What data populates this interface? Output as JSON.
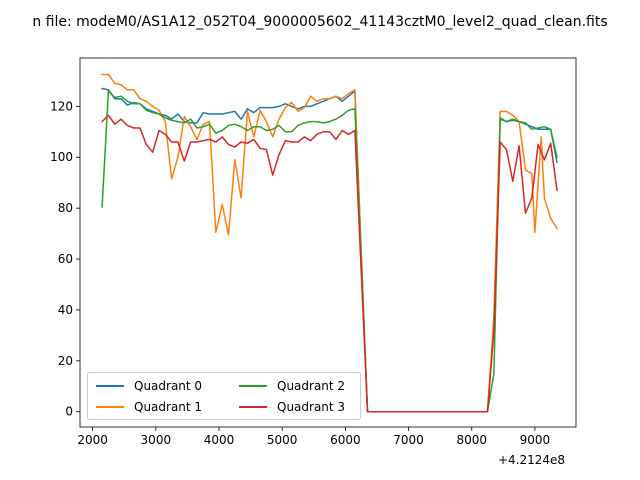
{
  "chart_data": {
    "type": "line",
    "title": "n file: modeM0/AS1A12_052T04_9000005602_41143cztM0_level2_quad_clean.fits",
    "xlabel": "",
    "ylabel": "",
    "x_offset_label": "+4.2124e8",
    "xlim": [
      1800,
      9650
    ],
    "ylim": [
      -6,
      139
    ],
    "xticks": [
      2000,
      3000,
      4000,
      5000,
      6000,
      7000,
      8000,
      9000
    ],
    "yticks": [
      0,
      20,
      40,
      60,
      80,
      100,
      120
    ],
    "legend_placement": "lower-left",
    "legend_columns": 2,
    "grid": false,
    "series": [
      {
        "name": "Quadrant 0",
        "color": "#1f77b4",
        "points": [
          [
            2150,
            127
          ],
          [
            2250,
            126.5
          ],
          [
            2350,
            123
          ],
          [
            2450,
            123
          ],
          [
            2550,
            120.5
          ],
          [
            2650,
            121.5
          ],
          [
            2750,
            121
          ],
          [
            2850,
            119
          ],
          [
            2950,
            118
          ],
          [
            3050,
            117
          ],
          [
            3150,
            116.5
          ],
          [
            3250,
            115
          ],
          [
            3350,
            117
          ],
          [
            3450,
            114
          ],
          [
            3550,
            113.5
          ],
          [
            3650,
            113.5
          ],
          [
            3750,
            117.5
          ],
          [
            3850,
            117
          ],
          [
            3950,
            117
          ],
          [
            4050,
            117
          ],
          [
            4150,
            117.5
          ],
          [
            4250,
            118
          ],
          [
            4350,
            115
          ],
          [
            4450,
            119
          ],
          [
            4550,
            117.5
          ],
          [
            4650,
            119.5
          ],
          [
            4750,
            119.5
          ],
          [
            4850,
            119.5
          ],
          [
            4950,
            120
          ],
          [
            5050,
            121
          ],
          [
            5150,
            120
          ],
          [
            5250,
            119
          ],
          [
            5350,
            120
          ],
          [
            5450,
            120
          ],
          [
            5550,
            121
          ],
          [
            5650,
            122
          ],
          [
            5750,
            123
          ],
          [
            5850,
            124
          ],
          [
            5950,
            122
          ],
          [
            6050,
            124
          ],
          [
            6150,
            126
          ],
          [
            6350,
            0
          ],
          [
            8250,
            0
          ],
          [
            8350,
            35
          ],
          [
            8450,
            115
          ],
          [
            8550,
            114
          ],
          [
            8650,
            114.5
          ],
          [
            8750,
            114
          ],
          [
            8850,
            113
          ],
          [
            8950,
            112
          ],
          [
            9050,
            111
          ],
          [
            9150,
            111
          ],
          [
            9250,
            111
          ],
          [
            9350,
            98
          ]
        ]
      },
      {
        "name": "Quadrant 1",
        "color": "#ff7f0e",
        "points": [
          [
            2150,
            132.5
          ],
          [
            2250,
            132.5
          ],
          [
            2350,
            129
          ],
          [
            2450,
            128.5
          ],
          [
            2550,
            126.5
          ],
          [
            2650,
            126.5
          ],
          [
            2750,
            123
          ],
          [
            2850,
            122
          ],
          [
            2950,
            120
          ],
          [
            3050,
            118.5
          ],
          [
            3150,
            114
          ],
          [
            3250,
            91.5
          ],
          [
            3350,
            100
          ],
          [
            3450,
            116
          ],
          [
            3550,
            112
          ],
          [
            3650,
            107
          ],
          [
            3750,
            113
          ],
          [
            3850,
            114
          ],
          [
            3950,
            70.5
          ],
          [
            4050,
            81.5
          ],
          [
            4150,
            69.5
          ],
          [
            4250,
            99
          ],
          [
            4350,
            84
          ],
          [
            4450,
            118
          ],
          [
            4550,
            108
          ],
          [
            4650,
            118.5
          ],
          [
            4750,
            114
          ],
          [
            4850,
            108
          ],
          [
            4950,
            115
          ],
          [
            5050,
            119.5
          ],
          [
            5150,
            121.5
          ],
          [
            5250,
            118
          ],
          [
            5350,
            119.5
          ],
          [
            5450,
            124
          ],
          [
            5550,
            122
          ],
          [
            5650,
            123
          ],
          [
            5750,
            123
          ],
          [
            5850,
            124
          ],
          [
            5950,
            123
          ],
          [
            6050,
            125
          ],
          [
            6150,
            126.5
          ],
          [
            6350,
            0
          ],
          [
            8250,
            0
          ],
          [
            8350,
            37
          ],
          [
            8450,
            118
          ],
          [
            8550,
            118
          ],
          [
            8650,
            116.5
          ],
          [
            8750,
            114
          ],
          [
            8850,
            95
          ],
          [
            8950,
            93.5
          ],
          [
            9000,
            70.5
          ],
          [
            9100,
            108
          ],
          [
            9150,
            84
          ],
          [
            9250,
            76
          ],
          [
            9350,
            72
          ]
        ]
      },
      {
        "name": "Quadrant 2",
        "color": "#2ca02c",
        "points": [
          [
            2150,
            80.5
          ],
          [
            2250,
            126
          ],
          [
            2350,
            123.5
          ],
          [
            2450,
            124
          ],
          [
            2550,
            122
          ],
          [
            2650,
            121
          ],
          [
            2750,
            121
          ],
          [
            2850,
            118.5
          ],
          [
            2950,
            117.5
          ],
          [
            3050,
            117
          ],
          [
            3150,
            115.5
          ],
          [
            3250,
            114.5
          ],
          [
            3350,
            114
          ],
          [
            3450,
            113.5
          ],
          [
            3550,
            115
          ],
          [
            3650,
            111.5
          ],
          [
            3750,
            112
          ],
          [
            3850,
            113
          ],
          [
            3950,
            109.5
          ],
          [
            4050,
            110.5
          ],
          [
            4150,
            112.5
          ],
          [
            4250,
            113
          ],
          [
            4350,
            112
          ],
          [
            4450,
            110.5
          ],
          [
            4550,
            112
          ],
          [
            4650,
            112
          ],
          [
            4750,
            110.5
          ],
          [
            4850,
            111
          ],
          [
            4950,
            112.5
          ],
          [
            5050,
            110
          ],
          [
            5150,
            110
          ],
          [
            5250,
            112.5
          ],
          [
            5350,
            113.5
          ],
          [
            5450,
            114
          ],
          [
            5550,
            114
          ],
          [
            5650,
            113.5
          ],
          [
            5750,
            114
          ],
          [
            5850,
            115
          ],
          [
            5950,
            116.5
          ],
          [
            6050,
            118.5
          ],
          [
            6150,
            119
          ],
          [
            6350,
            0
          ],
          [
            8250,
            0
          ],
          [
            8350,
            15
          ],
          [
            8450,
            115.5
          ],
          [
            8550,
            114
          ],
          [
            8650,
            115
          ],
          [
            8750,
            114
          ],
          [
            8850,
            113.5
          ],
          [
            8950,
            111
          ],
          [
            9050,
            111.5
          ],
          [
            9150,
            112
          ],
          [
            9250,
            111
          ],
          [
            9350,
            100
          ]
        ]
      },
      {
        "name": "Quadrant 3",
        "color": "#d62728",
        "points": [
          [
            2150,
            114
          ],
          [
            2250,
            116.5
          ],
          [
            2350,
            113
          ],
          [
            2450,
            115
          ],
          [
            2550,
            112.5
          ],
          [
            2650,
            111.5
          ],
          [
            2750,
            111.5
          ],
          [
            2850,
            105
          ],
          [
            2950,
            102
          ],
          [
            3050,
            110.5
          ],
          [
            3150,
            109
          ],
          [
            3250,
            106
          ],
          [
            3350,
            106
          ],
          [
            3450,
            98.5
          ],
          [
            3550,
            106
          ],
          [
            3650,
            106
          ],
          [
            3750,
            106.5
          ],
          [
            3850,
            107
          ],
          [
            3950,
            106
          ],
          [
            4050,
            108
          ],
          [
            4150,
            105
          ],
          [
            4250,
            104
          ],
          [
            4350,
            106
          ],
          [
            4450,
            105.5
          ],
          [
            4550,
            107
          ],
          [
            4650,
            103.5
          ],
          [
            4750,
            103
          ],
          [
            4850,
            93
          ],
          [
            4950,
            101
          ],
          [
            5050,
            106.5
          ],
          [
            5150,
            106
          ],
          [
            5250,
            106
          ],
          [
            5350,
            108
          ],
          [
            5450,
            106.5
          ],
          [
            5550,
            109
          ],
          [
            5650,
            110
          ],
          [
            5750,
            110
          ],
          [
            5850,
            107
          ],
          [
            5950,
            110.5
          ],
          [
            6050,
            109
          ],
          [
            6150,
            110.5
          ],
          [
            6350,
            0
          ],
          [
            8250,
            0
          ],
          [
            8350,
            32
          ],
          [
            8450,
            106
          ],
          [
            8550,
            103
          ],
          [
            8650,
            90.5
          ],
          [
            8750,
            104.5
          ],
          [
            8850,
            78
          ],
          [
            8950,
            84
          ],
          [
            9050,
            105
          ],
          [
            9150,
            99
          ],
          [
            9250,
            105.5
          ],
          [
            9350,
            87
          ]
        ]
      }
    ]
  }
}
